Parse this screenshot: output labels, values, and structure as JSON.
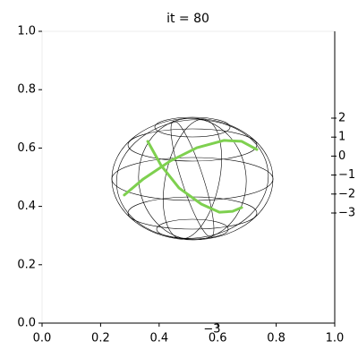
{
  "chart_data": {
    "type": "line3d",
    "title": "it = 80",
    "xlim": [
      0,
      1
    ],
    "ylim": [
      0,
      1
    ],
    "xticks": [
      {
        "value": 0,
        "label": "0.0"
      },
      {
        "value": 0.2,
        "label": "0.2"
      },
      {
        "value": 0.4,
        "label": "0.4"
      },
      {
        "value": 0.6,
        "label": "0.6"
      },
      {
        "value": 0.8,
        "label": "0.8"
      },
      {
        "value": 1,
        "label": "1.0"
      }
    ],
    "yticks": [
      {
        "value": 0,
        "label": "0.0"
      },
      {
        "value": 0.2,
        "label": "0.2"
      },
      {
        "value": 0.4,
        "label": "0.4"
      },
      {
        "value": 0.6,
        "label": "0.6"
      },
      {
        "value": 0.8,
        "label": "0.8"
      },
      {
        "value": 1,
        "label": "1.0"
      }
    ],
    "zlim": [
      -3,
      2
    ],
    "zticks": [
      2,
      1,
      0,
      {
        "value": -1,
        "label": "−1"
      },
      {
        "value": -2,
        "label": "−2"
      },
      {
        "value": -3,
        "label": "−3"
      }
    ],
    "bottom_tick_label": "−3",
    "series": [
      {
        "color": "#7ed04f",
        "x": [
          0.281,
          0.346,
          0.437,
          0.529,
          0.621,
          0.682,
          0.734
        ],
        "values": [
          0.439,
          0.494,
          0.555,
          0.601,
          0.626,
          0.623,
          0.595
        ]
      },
      {
        "color": "#7ed04f",
        "x": [
          0.361,
          0.407,
          0.468,
          0.544,
          0.606,
          0.651,
          0.682
        ],
        "values": [
          0.623,
          0.54,
          0.463,
          0.408,
          0.38,
          0.383,
          0.396
        ]
      }
    ]
  }
}
